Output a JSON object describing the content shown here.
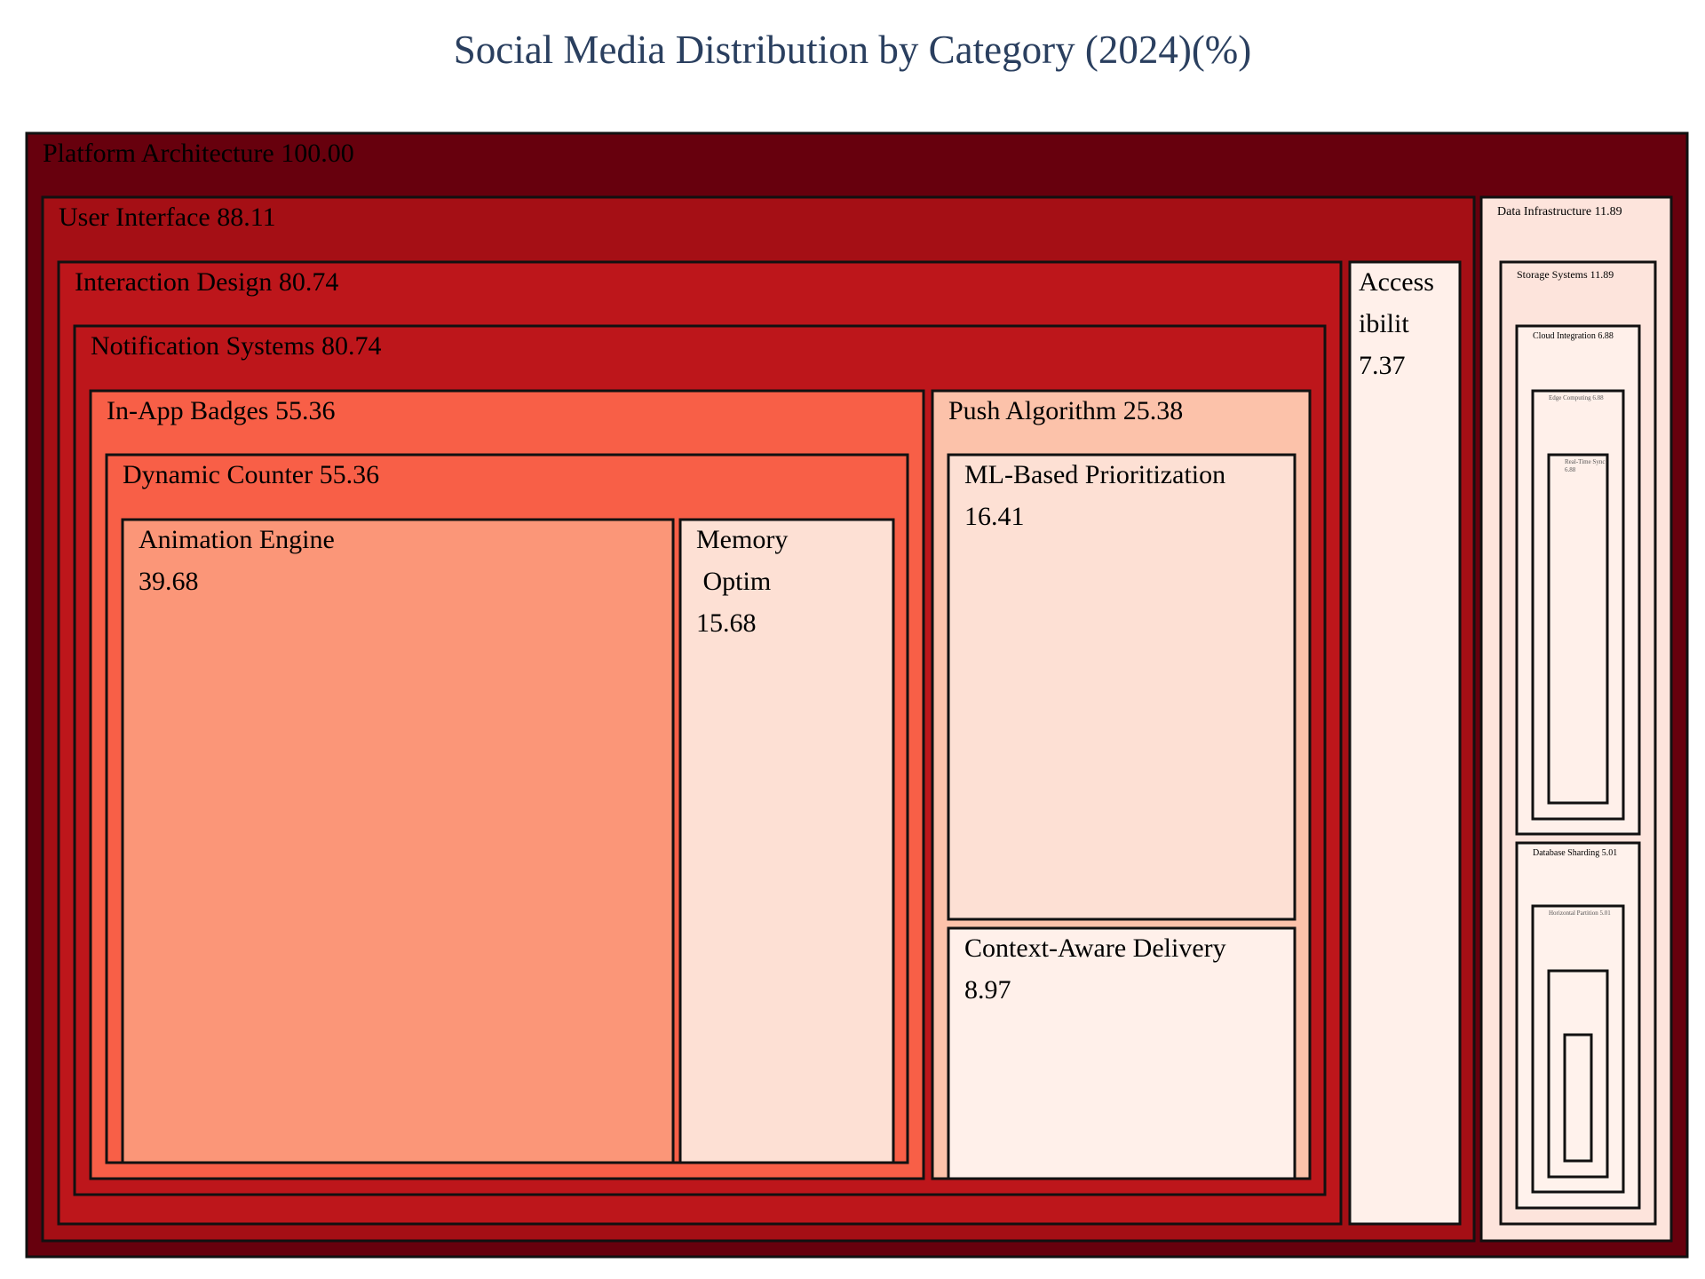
{
  "chart_data": {
    "type": "treemap",
    "title": "Social Media Distribution by Category (2024)(%)",
    "value_format": "2 decimals",
    "colorscale": "Reds",
    "nodes": [
      {
        "id": "root",
        "label": "Platform Architecture",
        "value": 100.0,
        "display": "Platform Architecture 100.00",
        "color": "#67000d",
        "text_color": "#000000"
      },
      {
        "id": "ui",
        "parent": "root",
        "label": "User Interface",
        "value": 88.11,
        "display": "User Interface 88.11",
        "color": "#a50f15",
        "text_color": "#000000"
      },
      {
        "id": "data",
        "parent": "root",
        "label": "Data Infrastructure",
        "value": 11.89,
        "display": "Data Infrastructure 11.89",
        "color": "#fde4dc",
        "text_color": "#000000"
      },
      {
        "id": "ixd",
        "parent": "ui",
        "label": "Interaction Design",
        "value": 80.74,
        "display": "Interaction Design 80.74",
        "color": "#bd161b",
        "text_color": "#000000"
      },
      {
        "id": "acc",
        "parent": "ui",
        "label": "Accessibility",
        "value": 7.37,
        "display": "Access|ibilit|7.37",
        "color": "#fff0ea",
        "text_color": "#000000"
      },
      {
        "id": "notif",
        "parent": "ixd",
        "label": "Notification Systems",
        "value": 80.74,
        "display": "Notification Systems 80.74",
        "color": "#bd161b",
        "text_color": "#000000"
      },
      {
        "id": "badges",
        "parent": "notif",
        "label": "In-App Badges",
        "value": 55.36,
        "display": "In-App Badges 55.36",
        "color": "#f85f47",
        "text_color": "#000000"
      },
      {
        "id": "push",
        "parent": "notif",
        "label": "Push Algorithm",
        "value": 25.38,
        "display": "Push Algorithm 25.38",
        "color": "#fcc2aa",
        "text_color": "#000000"
      },
      {
        "id": "counter",
        "parent": "badges",
        "label": "Dynamic Counter",
        "value": 55.36,
        "display": "Dynamic Counter 55.36",
        "color": "#f85f47",
        "text_color": "#000000"
      },
      {
        "id": "anim",
        "parent": "counter",
        "label": "Animation Engine",
        "value": 39.68,
        "display": "Animation Engine|39.68",
        "color": "#fb9678",
        "text_color": "#000000"
      },
      {
        "id": "mem",
        "parent": "counter",
        "label": "Memory Optim",
        "value": 15.68,
        "display": "Memory| Optim|15.68",
        "color": "#fde0d4",
        "text_color": "#000000"
      },
      {
        "id": "ml",
        "parent": "push",
        "label": "ML-Based Prioritization",
        "value": 16.41,
        "display": "ML-Based Prioritization|16.41",
        "color": "#fde0d4",
        "text_color": "#000000"
      },
      {
        "id": "ctx",
        "parent": "push",
        "label": "Context-Aware Delivery",
        "value": 8.97,
        "display": "Context-Aware Delivery|8.97",
        "color": "#fff0ea",
        "text_color": "#000000"
      },
      {
        "id": "storage",
        "parent": "data",
        "label": "Storage Systems",
        "value": 11.89,
        "display": "Storage Systems 11.89",
        "color": "#fde4dc",
        "text_color": "#000000"
      },
      {
        "id": "cloud",
        "parent": "storage",
        "label": "Cloud Integration",
        "value": 6.88,
        "display": "Cloud Integration 6.88",
        "color": "#fff0ea",
        "text_color": "#000000"
      },
      {
        "id": "shard",
        "parent": "storage",
        "label": "Database Sharding",
        "value": 5.01,
        "display": "Database Sharding 5.01",
        "color": "#fff2ec",
        "text_color": "#000000"
      },
      {
        "id": "edge",
        "parent": "cloud",
        "label": "Edge Computing",
        "value": 6.88,
        "display": "Edge Computing 6.88",
        "color": "#fff0ea",
        "text_color": "#555555"
      },
      {
        "id": "rts",
        "parent": "edge",
        "label": "Real-Time Sync",
        "value": 6.88,
        "display": "Real-Time Sync|6.88",
        "color": "#fff0ea",
        "text_color": "#555555"
      },
      {
        "id": "hpart",
        "parent": "shard",
        "label": "Horizontal Partition",
        "value": 5.01,
        "display": "Horizontal Partition 5.01",
        "color": "#fff2ec",
        "text_color": "#555555"
      },
      {
        "id": "h3",
        "parent": "hpart",
        "label": "",
        "value": 5.01,
        "display": "",
        "color": "#fff2ec",
        "text_color": "#555555"
      },
      {
        "id": "h4",
        "parent": "h3",
        "label": "",
        "value": 5.01,
        "display": "",
        "color": "#fff2ec",
        "text_color": "#555555"
      }
    ]
  }
}
